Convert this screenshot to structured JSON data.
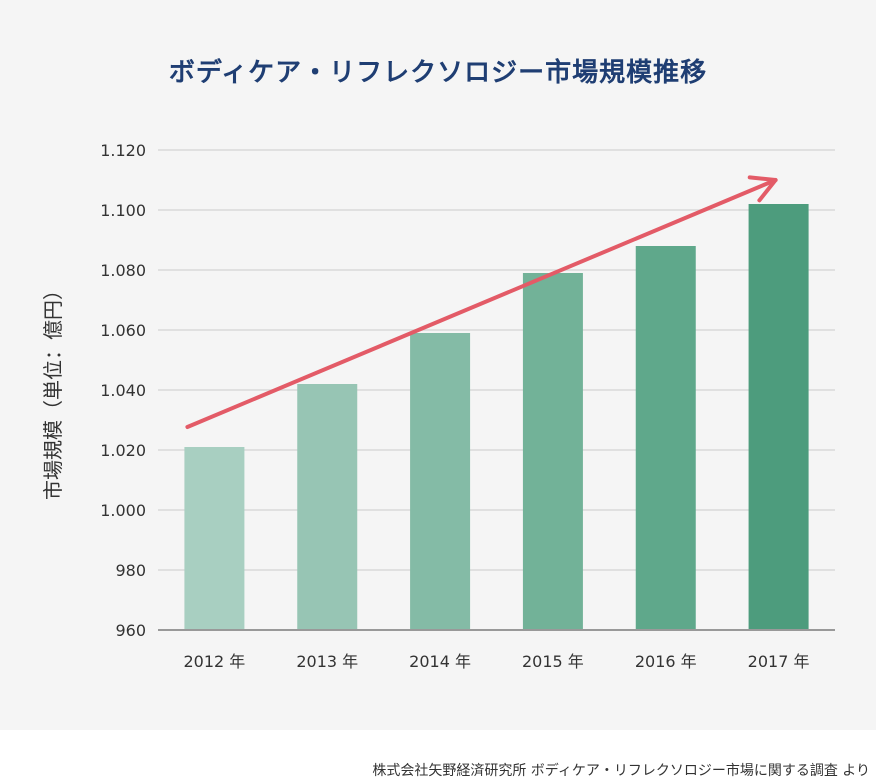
{
  "chart_data": {
    "type": "bar",
    "title": "ボディケア・リフレクソロジー市場規模推移",
    "ylabel": "市場規模（単位：億円）",
    "xlabel": "",
    "categories": [
      "2012 年",
      "2013 年",
      "2014 年",
      "2015 年",
      "2016 年",
      "2017 年"
    ],
    "values": [
      1021,
      1042,
      1059,
      1079,
      1088,
      1102
    ],
    "ylim": [
      960,
      1120
    ],
    "yticks": [
      960,
      980,
      1000,
      1020,
      1040,
      1060,
      1080,
      1100,
      1120
    ],
    "ytick_labels": [
      "960",
      "980",
      "1.000",
      "1.020",
      "1.040",
      "1.060",
      "1.080",
      "1.100",
      "1.120"
    ],
    "grid": true,
    "bar_colors": [
      "#a8cfc1",
      "#97c5b4",
      "#84bba6",
      "#72b298",
      "#5fa88b",
      "#4d9c7d"
    ],
    "trend_arrow_color": "#e35b67",
    "source": "株式会社矢野経済研究所 ボディケア・リフレクソロジー市場に関する調査 より"
  },
  "colors": {
    "title": "#1f3e73",
    "grid": "#d9d9d9",
    "axis": "#999999",
    "background": "#f5f5f5"
  }
}
